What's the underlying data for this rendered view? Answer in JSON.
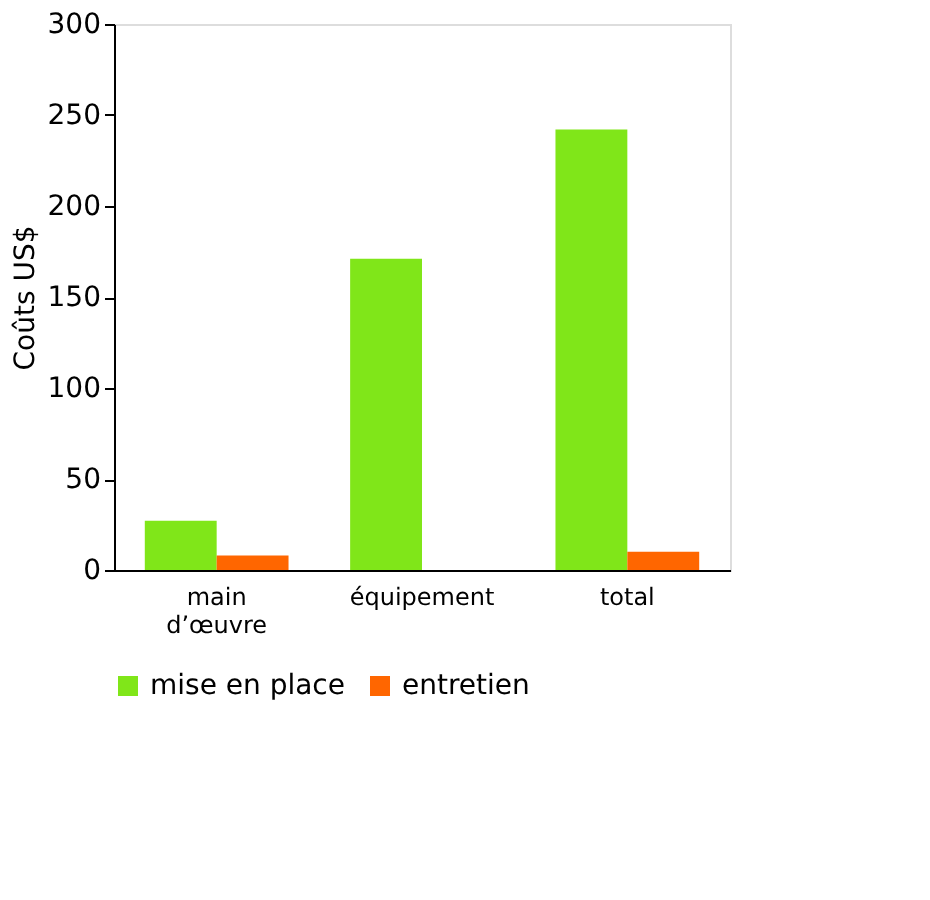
{
  "chart_data": {
    "type": "bar",
    "ylabel": "Coûts US$",
    "categories": [
      "main d’œuvre",
      "équipement",
      "total"
    ],
    "series": [
      {
        "name": "mise en place",
        "color": "#80e619",
        "values": [
          27,
          171,
          242
        ]
      },
      {
        "name": "entretien",
        "color": "#ff6600",
        "values": [
          8,
          null,
          10
        ]
      }
    ],
    "ylim": [
      0,
      300
    ],
    "yticks": [
      0,
      50,
      100,
      150,
      200,
      250,
      300
    ],
    "grid": false,
    "legend": "bottom"
  }
}
